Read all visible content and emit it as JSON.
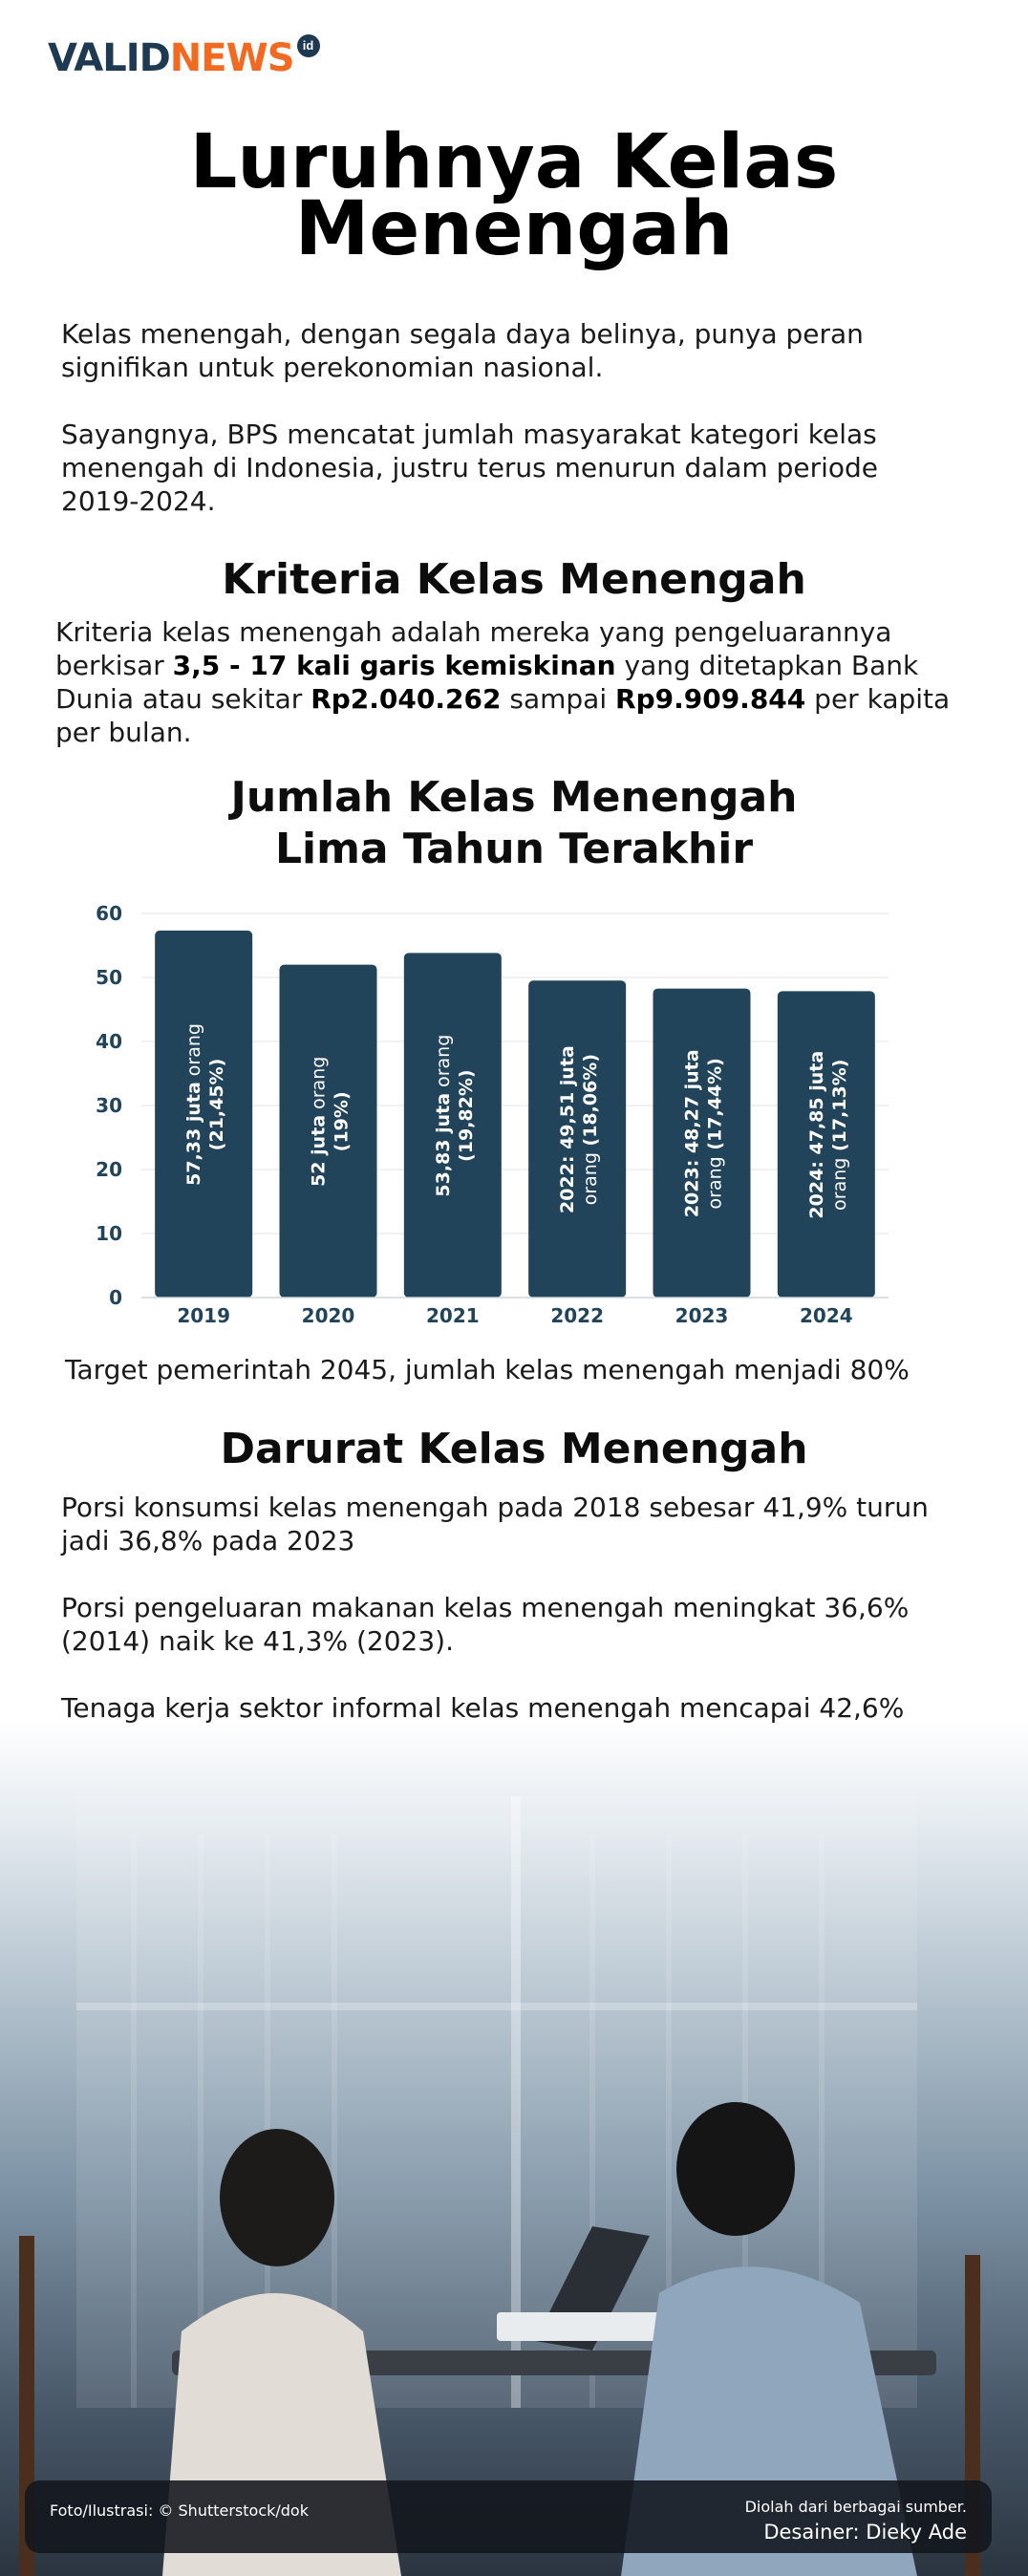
{
  "brand": {
    "logo_part1": "VALID",
    "logo_part2": "NEWS",
    "logo_badge": "id"
  },
  "title": "Luruhnya Kelas Menengah",
  "intro": [
    "Kelas menengah, dengan segala daya belinya, punya peran signifikan untuk perekonomian nasional.",
    "Sayangnya, BPS mencatat jumlah masyarakat kategori kelas menengah di Indonesia, justru terus menurun dalam periode 2019-2024."
  ],
  "criteria": {
    "heading": "Kriteria Kelas Menengah",
    "text_1": "Kriteria kelas menengah adalah mereka yang pengeluarannya berkisar ",
    "bold_1": "3,5 - 17 kali garis kemiskinan",
    "text_2": " yang ditetapkan Bank Dunia atau sekitar ",
    "bold_2": "Rp2.040.262",
    "text_3": " sampai ",
    "bold_3": "Rp9.909.844",
    "text_4": " per kapita per bulan."
  },
  "chart_heading_line1": "Jumlah Kelas Menengah",
  "chart_heading_line2": "Lima Tahun Terakhir",
  "chart_data": {
    "type": "bar",
    "title": "Jumlah Kelas Menengah Lima Tahun Terakhir",
    "categories": [
      "2019",
      "2020",
      "2021",
      "2022",
      "2023",
      "2024"
    ],
    "values": [
      57.33,
      52,
      53.83,
      49.51,
      48.27,
      47.85
    ],
    "ylim": [
      0,
      60
    ],
    "yticks": [
      0,
      10,
      20,
      30,
      40,
      50,
      60
    ],
    "grid": true,
    "bar_color": "#21445b",
    "labels": [
      {
        "bold": "57,33 juta",
        "rest": " orang",
        "pct": "(21,45%)"
      },
      {
        "bold": "52 juta",
        "rest": " orang",
        "pct": "(19%)"
      },
      {
        "bold": "53,83 juta",
        "rest": " orang",
        "pct": "(19,82%)"
      },
      {
        "bold": "2022: 49,51 juta",
        "rest": "orang",
        "pct": " (18,06%)"
      },
      {
        "bold": "2023: 48,27 juta",
        "rest": "orang",
        "pct": " (17,44%)"
      },
      {
        "bold": "2024: 47,85 juta",
        "rest": "orang",
        "pct": " (17,13%)"
      }
    ]
  },
  "target_text": "Target pemerintah 2045, jumlah kelas menengah menjadi 80%",
  "emergency": {
    "heading": "Darurat Kelas Menengah",
    "p1": "Porsi konsumsi kelas menengah pada 2018 sebesar 41,9% turun jadi 36,8% pada 2023",
    "p2": "Porsi pengeluaran makanan kelas menengah meningkat 36,6% (2014) naik ke 41,3% (2023).",
    "p3": "Tenaga kerja sektor informal kelas menengah mencapai 42,6%"
  },
  "footer": {
    "photo_credit": "Foto/Ilustrasi: © Shutterstock/dok",
    "source": "Diolah dari berbagai sumber.",
    "designer": "Desainer: Dieky Ade"
  }
}
